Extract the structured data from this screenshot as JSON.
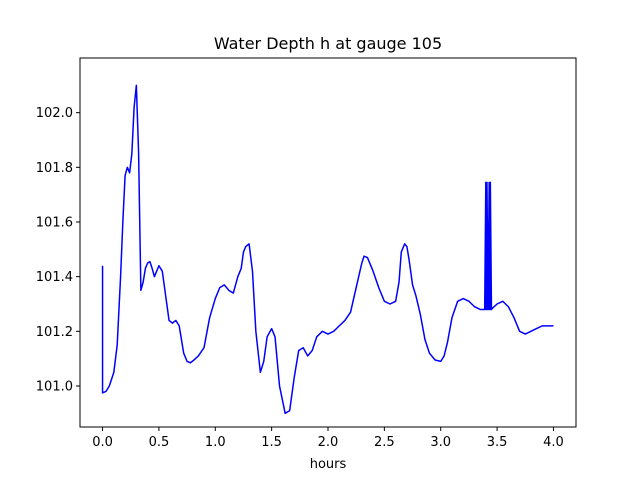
{
  "chart_data": {
    "type": "line",
    "title": "Water Depth h at gauge 105",
    "xlabel": "hours",
    "ylabel": "",
    "xlim": [
      -0.2,
      4.2
    ],
    "ylim": [
      100.85,
      102.2
    ],
    "xticks": [
      0.0,
      0.5,
      1.0,
      1.5,
      2.0,
      2.5,
      3.0,
      3.5,
      4.0
    ],
    "xtick_labels": [
      "0.0",
      "0.5",
      "1.0",
      "1.5",
      "2.0",
      "2.5",
      "3.0",
      "3.5",
      "4.0"
    ],
    "yticks": [
      101.0,
      101.2,
      101.4,
      101.6,
      101.8,
      102.0
    ],
    "ytick_labels": [
      "101.0",
      "101.2",
      "101.4",
      "101.6",
      "101.8",
      "102.0"
    ],
    "grid": false,
    "color": "#0000ff",
    "series": [
      {
        "x": [
          0.0,
          0.0,
          0.0,
          0.03,
          0.06,
          0.1,
          0.13,
          0.16,
          0.18,
          0.2,
          0.22,
          0.24,
          0.26,
          0.28,
          0.3,
          0.32,
          0.34,
          0.36,
          0.38,
          0.4,
          0.42,
          0.44,
          0.46,
          0.48,
          0.5,
          0.53,
          0.56,
          0.59,
          0.62,
          0.65,
          0.68,
          0.72,
          0.75,
          0.78,
          0.81,
          0.85,
          0.9,
          0.95,
          1.0,
          1.04,
          1.08,
          1.12,
          1.16,
          1.2,
          1.23,
          1.25,
          1.27,
          1.3,
          1.33,
          1.36,
          1.4,
          1.43,
          1.46,
          1.5,
          1.53,
          1.57,
          1.62,
          1.66,
          1.7,
          1.74,
          1.78,
          1.82,
          1.86,
          1.9,
          1.95,
          2.0,
          2.05,
          2.1,
          2.15,
          2.2,
          2.25,
          2.3,
          2.32,
          2.35,
          2.4,
          2.45,
          2.5,
          2.55,
          2.6,
          2.63,
          2.65,
          2.68,
          2.7,
          2.72,
          2.75,
          2.78,
          2.82,
          2.86,
          2.9,
          2.95,
          3.0,
          3.03,
          3.06,
          3.1,
          3.15,
          3.2,
          3.25,
          3.3,
          3.35,
          3.39,
          3.4,
          3.4,
          3.41,
          3.41,
          3.42,
          3.42,
          3.43,
          3.43,
          3.44,
          3.44,
          3.45,
          3.45,
          3.46,
          3.5,
          3.55,
          3.6,
          3.65,
          3.7,
          3.75,
          3.8,
          3.85,
          3.9,
          3.95,
          4.0
        ],
        "y": [
          101.44,
          100.975,
          100.975,
          100.98,
          101.0,
          101.05,
          101.15,
          101.4,
          101.6,
          101.77,
          101.8,
          101.78,
          101.85,
          102.02,
          102.1,
          101.85,
          101.35,
          101.38,
          101.43,
          101.45,
          101.455,
          101.43,
          101.4,
          101.42,
          101.44,
          101.42,
          101.33,
          101.24,
          101.23,
          101.24,
          101.22,
          101.12,
          101.09,
          101.085,
          101.095,
          101.11,
          101.14,
          101.25,
          101.32,
          101.36,
          101.37,
          101.35,
          101.34,
          101.4,
          101.43,
          101.49,
          101.51,
          101.52,
          101.42,
          101.2,
          101.05,
          101.09,
          101.18,
          101.21,
          101.18,
          101.0,
          100.9,
          100.91,
          101.03,
          101.13,
          101.14,
          101.11,
          101.13,
          101.18,
          101.2,
          101.19,
          101.2,
          101.22,
          101.24,
          101.27,
          101.36,
          101.45,
          101.475,
          101.47,
          101.42,
          101.36,
          101.31,
          101.3,
          101.31,
          101.38,
          101.49,
          101.52,
          101.51,
          101.46,
          101.37,
          101.33,
          101.26,
          101.17,
          101.12,
          101.095,
          101.09,
          101.11,
          101.16,
          101.25,
          101.31,
          101.32,
          101.31,
          101.29,
          101.28,
          101.28,
          101.745,
          101.28,
          101.28,
          101.745,
          101.28,
          101.28,
          101.745,
          101.28,
          101.28,
          101.745,
          101.28,
          101.28,
          101.285,
          101.3,
          101.31,
          101.29,
          101.25,
          101.2,
          101.19,
          101.2,
          101.21,
          101.22,
          101.22,
          101.22
        ]
      }
    ]
  }
}
